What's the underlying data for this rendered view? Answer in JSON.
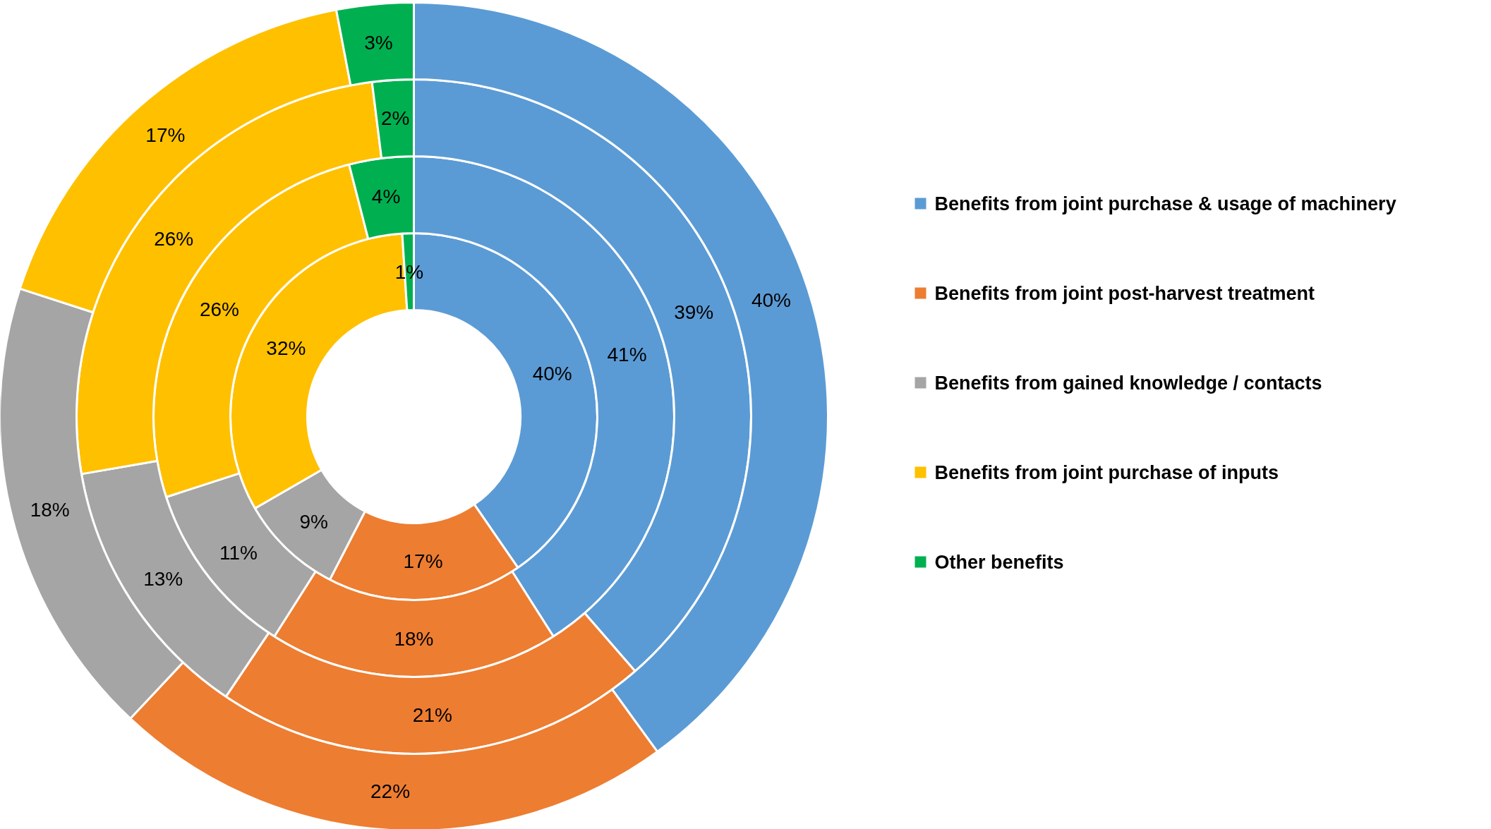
{
  "chart_data": {
    "type": "donut",
    "categories": [
      "Benefits from joint purchase & usage of machinery",
      "Benefits from joint post-harvest treatment",
      "Benefits from gained knowledge / contacts",
      "Benefits from joint purchase of inputs",
      "Other benefits"
    ],
    "colors": [
      "#5b9bd5",
      "#ed7d31",
      "#a5a5a5",
      "#ffc000",
      "#00b050"
    ],
    "series": [
      {
        "values": [
          40,
          17,
          9,
          32,
          1
        ],
        "value_labels": [
          "40%",
          "17%",
          "9%",
          "32%",
          "1%"
        ]
      },
      {
        "values": [
          41,
          18,
          11,
          26,
          4
        ],
        "value_labels": [
          "41%",
          "18%",
          "11%",
          "26%",
          "4%"
        ]
      },
      {
        "values": [
          39,
          21,
          13,
          26,
          2
        ],
        "value_labels": [
          "39%",
          "21%",
          "13%",
          "26%",
          "2%"
        ]
      },
      {
        "values": [
          40,
          22,
          18,
          17,
          3
        ],
        "value_labels": [
          "40%",
          "22%",
          "18%",
          "17%",
          "3%"
        ]
      }
    ],
    "legend": "right"
  }
}
